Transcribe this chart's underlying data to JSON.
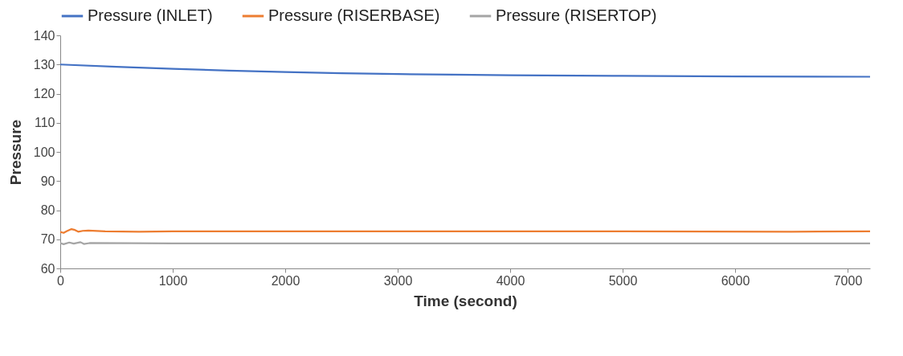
{
  "chart_data": {
    "type": "line",
    "xlabel": "Time (second)",
    "ylabel": "Pressure",
    "xlim": [
      0,
      7200
    ],
    "xticks": [
      0,
      1000,
      2000,
      3000,
      4000,
      5000,
      6000,
      7000
    ],
    "ylim": [
      60,
      140
    ],
    "yticks": [
      60,
      70,
      80,
      90,
      100,
      110,
      120,
      130,
      140
    ],
    "grid": false,
    "legend": "top",
    "marker": "none",
    "line_style": "solid",
    "series": [
      {
        "name": "Pressure (INLET)",
        "color": "#4472c4",
        "x": [
          0,
          500,
          1000,
          1500,
          2000,
          2500,
          3000,
          3500,
          4000,
          5000,
          6000,
          7200
        ],
        "values": [
          130,
          129.2,
          128.5,
          127.9,
          127.4,
          127,
          126.7,
          126.5,
          126.3,
          126.1,
          125.9,
          125.8
        ]
      },
      {
        "name": "Pressure (RISERBASE)",
        "color": "#ed7d31",
        "x": [
          0,
          30,
          60,
          100,
          130,
          160,
          200,
          250,
          400,
          700,
          1000,
          2000,
          3000,
          5000,
          6500,
          7200
        ],
        "values": [
          72.5,
          72.2,
          72.8,
          73.5,
          73.2,
          72.6,
          72.9,
          73,
          72.7,
          72.6,
          72.7,
          72.7,
          72.7,
          72.7,
          72.6,
          72.7
        ]
      },
      {
        "name": "Pressure (RISERTOP)",
        "color": "#a5a5a5",
        "x": [
          0,
          30,
          80,
          120,
          180,
          210,
          260,
          1000,
          3000,
          5000,
          7200
        ],
        "values": [
          68.7,
          68.3,
          68.9,
          68.5,
          69,
          68.4,
          68.7,
          68.6,
          68.6,
          68.6,
          68.6
        ]
      }
    ]
  }
}
